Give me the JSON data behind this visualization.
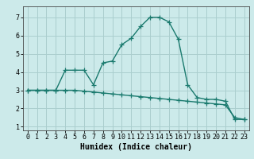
{
  "line1_x": [
    0,
    1,
    2,
    3,
    4,
    5,
    6,
    7,
    8,
    9,
    10,
    11,
    12,
    13,
    14,
    15,
    16,
    17,
    18,
    19,
    20,
    21,
    22,
    23
  ],
  "line1_y": [
    3.0,
    3.0,
    3.0,
    3.0,
    4.1,
    4.1,
    4.1,
    3.3,
    4.5,
    4.6,
    5.5,
    5.85,
    6.5,
    7.0,
    7.0,
    6.75,
    5.8,
    3.3,
    2.6,
    2.5,
    2.5,
    2.4,
    1.4,
    1.4
  ],
  "line2_x": [
    0,
    1,
    2,
    3,
    4,
    5,
    6,
    7,
    8,
    9,
    10,
    11,
    12,
    13,
    14,
    15,
    16,
    17,
    18,
    19,
    20,
    21,
    22,
    23
  ],
  "line2_y": [
    3.0,
    3.0,
    3.0,
    3.0,
    3.0,
    3.0,
    2.95,
    2.9,
    2.85,
    2.8,
    2.75,
    2.7,
    2.65,
    2.6,
    2.55,
    2.5,
    2.45,
    2.4,
    2.35,
    2.3,
    2.25,
    2.2,
    1.5,
    1.4
  ],
  "line_color": "#1a7a6e",
  "bg_color": "#cceaea",
  "grid_color": "#aacece",
  "xlabel": "Humidex (Indice chaleur)",
  "ylim": [
    0.8,
    7.6
  ],
  "xlim": [
    -0.5,
    23.5
  ],
  "yticks": [
    1,
    2,
    3,
    4,
    5,
    6,
    7
  ],
  "xticks": [
    0,
    1,
    2,
    3,
    4,
    5,
    6,
    7,
    8,
    9,
    10,
    11,
    12,
    13,
    14,
    15,
    16,
    17,
    18,
    19,
    20,
    21,
    22,
    23
  ],
  "marker": "+",
  "markersize": 4,
  "linewidth": 1.0,
  "xlabel_fontsize": 7,
  "tick_fontsize": 6
}
